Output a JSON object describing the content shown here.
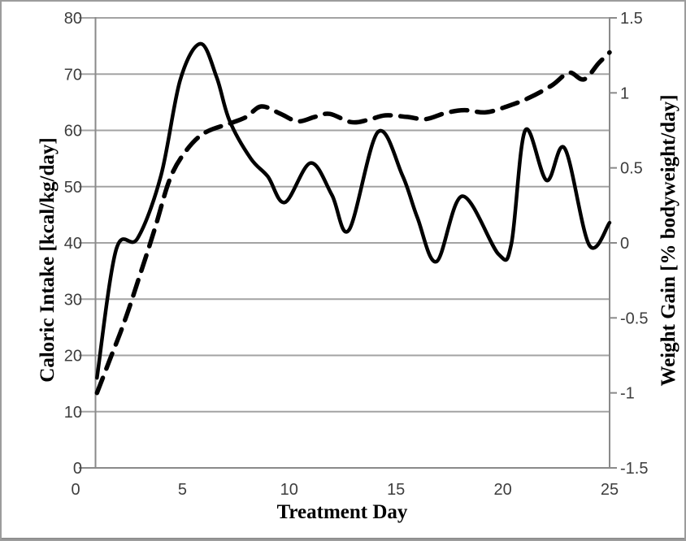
{
  "chart_data": {
    "type": "line",
    "title": "",
    "xlabel": "Treatment Day",
    "ylabel_left": "Caloric Intake [kcal/kg/day]",
    "ylabel_right": "Weight Gain [% bodyweight/day]",
    "legend": "none",
    "grid": {
      "horizontal": true,
      "vertical": false
    },
    "axes": {
      "x": {
        "min": 0,
        "max": 25,
        "tick_values": [
          0,
          5,
          10,
          15,
          20,
          25
        ],
        "tick_labels": [
          "0",
          "5",
          "10",
          "15",
          "20",
          "25"
        ]
      },
      "left": {
        "min": 0,
        "max": 80,
        "tick_values": [
          0,
          10,
          20,
          30,
          40,
          50,
          60,
          70,
          80
        ],
        "tick_labels": [
          "0",
          "10",
          "20",
          "30",
          "40",
          "50",
          "60",
          "70",
          "80"
        ]
      },
      "right": {
        "min": -1.5,
        "max": 1.5,
        "tick_values": [
          -1.5,
          -1,
          -0.5,
          0,
          0.5,
          1,
          1.5
        ],
        "tick_labels": [
          "-1.5",
          "-1",
          "-0.5",
          "0",
          "0.5",
          "1",
          "1.5"
        ]
      }
    },
    "series": [
      {
        "name": "Caloric Intake",
        "axis": "left",
        "line_style": "solid",
        "color": "#000000",
        "stroke_width": 4.5,
        "points": [
          [
            1,
            16
          ],
          [
            1.9,
            38.8
          ],
          [
            2.9,
            40.8
          ],
          [
            4,
            52
          ],
          [
            4.9,
            69
          ],
          [
            5.85,
            75.4
          ],
          [
            6.6,
            69.5
          ],
          [
            7.2,
            61.8
          ],
          [
            8.2,
            55
          ],
          [
            9,
            51.8
          ],
          [
            9.8,
            47.2
          ],
          [
            11,
            54.2
          ],
          [
            12,
            48.5
          ],
          [
            12.8,
            42.3
          ],
          [
            14.15,
            59.7
          ],
          [
            15.3,
            52
          ],
          [
            16,
            44.5
          ],
          [
            16.9,
            36.7
          ],
          [
            18.1,
            48.3
          ],
          [
            19.8,
            38
          ],
          [
            20.4,
            39.8
          ],
          [
            21.05,
            60
          ],
          [
            22.05,
            51.1
          ],
          [
            22.9,
            56.8
          ],
          [
            24.05,
            39.6
          ],
          [
            25,
            43.6
          ]
        ]
      },
      {
        "name": "Weight Gain",
        "axis": "right",
        "line_style": "dashed",
        "color": "#000000",
        "stroke_width": 5.5,
        "dash_pattern": [
          20,
          12
        ],
        "points": [
          [
            1,
            -1
          ],
          [
            1.6,
            -0.78
          ],
          [
            2.3,
            -0.52
          ],
          [
            3,
            -0.22
          ],
          [
            3.7,
            0.09
          ],
          [
            4.4,
            0.42
          ],
          [
            5.1,
            0.6
          ],
          [
            6,
            0.73
          ],
          [
            7.3,
            0.8
          ],
          [
            8,
            0.84
          ],
          [
            8.7,
            0.91
          ],
          [
            9.6,
            0.86
          ],
          [
            10.4,
            0.81
          ],
          [
            11.2,
            0.84
          ],
          [
            11.9,
            0.86
          ],
          [
            12.9,
            0.805
          ],
          [
            13.7,
            0.82
          ],
          [
            14.5,
            0.85
          ],
          [
            15.5,
            0.84
          ],
          [
            16.4,
            0.825
          ],
          [
            17.3,
            0.865
          ],
          [
            18.2,
            0.885
          ],
          [
            19.2,
            0.87
          ],
          [
            20.2,
            0.91
          ],
          [
            21.2,
            0.965
          ],
          [
            22.3,
            1.05
          ],
          [
            23.1,
            1.135
          ],
          [
            23.8,
            1.09
          ],
          [
            24.5,
            1.2
          ],
          [
            25,
            1.27
          ]
        ]
      }
    ]
  },
  "style": {
    "background": "#ffffff",
    "frame_border": "#9c9c9c",
    "gridline_color": "#a3a3a3",
    "axis_color": "#8a8a8a",
    "tick_text_color": "#3d3d3d",
    "title_text_color": "#000000"
  }
}
